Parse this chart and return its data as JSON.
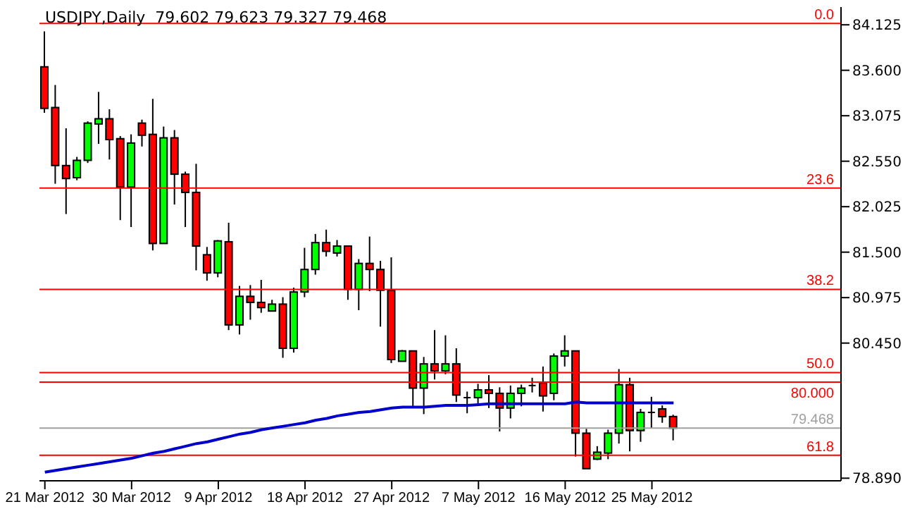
{
  "chart_data": {
    "type": "candlestick",
    "title": "USDJPY,Daily  79.602 79.623 79.327 79.468",
    "categories": [
      "21 Mar 2012",
      null,
      null,
      null,
      null,
      null,
      null,
      null,
      "30 Mar 2012",
      null,
      null,
      null,
      null,
      null,
      null,
      null,
      "9 Apr 2012",
      null,
      null,
      null,
      null,
      null,
      null,
      null,
      "18 Apr 2012",
      null,
      null,
      null,
      null,
      null,
      null,
      null,
      "27 Apr 2012",
      null,
      null,
      null,
      null,
      null,
      null,
      null,
      "7 May 2012",
      null,
      null,
      null,
      null,
      null,
      null,
      null,
      "16 May 2012",
      null,
      null,
      null,
      null,
      null,
      null,
      null,
      "25 May 2012",
      null,
      null
    ],
    "ohlc": [
      [
        83.64,
        84.05,
        83.11,
        83.16
      ],
      [
        83.17,
        83.43,
        82.29,
        82.5
      ],
      [
        82.5,
        82.93,
        81.94,
        82.35
      ],
      [
        82.36,
        82.6,
        82.33,
        82.56
      ],
      [
        82.56,
        83.01,
        82.53,
        82.99
      ],
      [
        82.98,
        83.35,
        82.75,
        83.04
      ],
      [
        83.04,
        83.15,
        82.57,
        82.8
      ],
      [
        82.81,
        82.84,
        81.87,
        82.25
      ],
      [
        82.25,
        82.86,
        81.79,
        82.76
      ],
      [
        82.99,
        83.03,
        82.72,
        82.85
      ],
      [
        82.86,
        83.27,
        81.52,
        81.6
      ],
      [
        81.6,
        82.95,
        81.6,
        82.82
      ],
      [
        82.82,
        82.91,
        82.05,
        82.4
      ],
      [
        82.4,
        82.43,
        81.79,
        82.19
      ],
      [
        82.19,
        82.52,
        81.29,
        81.57
      ],
      [
        81.47,
        81.56,
        81.17,
        81.26
      ],
      [
        81.26,
        81.64,
        81.21,
        81.63
      ],
      [
        81.62,
        81.84,
        80.6,
        80.66
      ],
      [
        80.66,
        81.11,
        80.55,
        80.99
      ],
      [
        80.99,
        81.12,
        80.72,
        80.92
      ],
      [
        80.92,
        81.18,
        80.8,
        80.86
      ],
      [
        80.82,
        80.95,
        80.82,
        80.9
      ],
      [
        80.9,
        80.98,
        80.28,
        80.39
      ],
      [
        80.39,
        81.09,
        80.34,
        81.04
      ],
      [
        81.04,
        81.55,
        80.98,
        81.3
      ],
      [
        81.3,
        81.71,
        81.24,
        81.61
      ],
      [
        81.61,
        81.76,
        81.45,
        81.51
      ],
      [
        81.49,
        81.64,
        81.45,
        81.57
      ],
      [
        81.57,
        81.57,
        80.95,
        81.07
      ],
      [
        81.07,
        81.42,
        80.83,
        81.37
      ],
      [
        81.37,
        81.68,
        81.05,
        81.3
      ],
      [
        81.3,
        81.4,
        80.64,
        81.06
      ],
      [
        81.06,
        81.44,
        80.22,
        80.26
      ],
      [
        80.24,
        80.37,
        80.24,
        80.36
      ],
      [
        80.36,
        80.36,
        79.72,
        79.93
      ],
      [
        79.93,
        80.29,
        79.63,
        80.21
      ],
      [
        80.21,
        80.6,
        80.03,
        80.13
      ],
      [
        80.13,
        80.54,
        80.09,
        80.21
      ],
      [
        80.21,
        80.39,
        79.77,
        79.85
      ],
      [
        79.82,
        79.89,
        79.64,
        79.82
      ],
      [
        79.82,
        79.98,
        79.75,
        79.91
      ],
      [
        79.91,
        80.08,
        79.7,
        79.87
      ],
      [
        79.87,
        79.94,
        79.43,
        79.7
      ],
      [
        79.7,
        79.96,
        79.58,
        79.87
      ],
      [
        79.87,
        79.97,
        79.72,
        79.93
      ],
      [
        79.96,
        80.05,
        79.88,
        79.96
      ],
      [
        79.99,
        80.18,
        79.66,
        79.84
      ],
      [
        79.87,
        80.33,
        79.79,
        80.3
      ],
      [
        80.3,
        80.54,
        80.18,
        80.36
      ],
      [
        80.36,
        80.36,
        79.14,
        79.41
      ],
      [
        79.41,
        79.46,
        79.0,
        79.0
      ],
      [
        79.11,
        79.26,
        79.1,
        79.19
      ],
      [
        79.18,
        79.45,
        79.11,
        79.41
      ],
      [
        79.41,
        80.15,
        79.29,
        79.97
      ],
      [
        79.97,
        80.05,
        79.2,
        79.44
      ],
      [
        79.44,
        79.69,
        79.31,
        79.65
      ],
      [
        79.65,
        79.83,
        79.47,
        79.65
      ],
      [
        79.69,
        79.73,
        79.53,
        79.6
      ],
      [
        79.602,
        79.623,
        79.327,
        79.468
      ]
    ],
    "colors": [
      "#ff0000",
      "#ff0000",
      "#ff0000",
      "#00ff00",
      "#00ff00",
      "#00ff00",
      "#ff0000",
      "#ff0000",
      "#00ff00",
      "#ff0000",
      "#ff0000",
      "#00ff00",
      "#ff0000",
      "#ff0000",
      "#ff0000",
      "#ff0000",
      "#00ff00",
      "#ff0000",
      "#00ff00",
      "#ff0000",
      "#ff0000",
      "#00ff00",
      "#ff0000",
      "#00ff00",
      "#00ff00",
      "#00ff00",
      "#ff0000",
      "#00ff00",
      "#ff0000",
      "#00ff00",
      "#ff0000",
      "#ff0000",
      "#ff0000",
      "#00ff00",
      "#ff0000",
      "#00ff00",
      "#ff0000",
      "#00ff00",
      "#ff0000",
      "#000000",
      "#00ff00",
      "#ff0000",
      "#ff0000",
      "#00ff00",
      "#00ff00",
      "#000000",
      "#ff0000",
      "#00ff00",
      "#00ff00",
      "#ff0000",
      "#ff0000",
      "#00ff00",
      "#00ff00",
      "#00ff00",
      "#ff0000",
      "#00ff00",
      "#000000",
      "#ff0000",
      "#ff0000"
    ],
    "series": [
      {
        "type": "line",
        "color": "#0000cc",
        "values": [
          78.96,
          78.98,
          79.0,
          79.02,
          79.04,
          79.06,
          79.08,
          79.1,
          79.12,
          79.15,
          79.18,
          79.2,
          79.23,
          79.26,
          79.29,
          79.31,
          79.34,
          79.37,
          79.4,
          79.42,
          79.45,
          79.47,
          79.49,
          79.51,
          79.53,
          79.56,
          79.58,
          79.61,
          79.63,
          79.65,
          79.66,
          79.68,
          79.7,
          79.71,
          79.71,
          79.71,
          79.72,
          79.73,
          79.73,
          79.73,
          79.74,
          79.75,
          79.75,
          79.75,
          79.75,
          79.75,
          79.75,
          79.75,
          79.75,
          79.77,
          79.76,
          79.76,
          79.76,
          79.76,
          79.76,
          79.76,
          79.76,
          79.76,
          79.76
        ]
      }
    ],
    "ylim": [
      78.86,
      84.33
    ],
    "yticks": [
      {
        "value": 84.125,
        "label": "84.125"
      },
      {
        "value": 83.6,
        "label": "83.600"
      },
      {
        "value": 83.075,
        "label": "83.075"
      },
      {
        "value": 82.55,
        "label": "82.550"
      },
      {
        "value": 82.025,
        "label": "82.025"
      },
      {
        "value": 81.5,
        "label": "81.500"
      },
      {
        "value": 80.975,
        "label": "80.975"
      },
      {
        "value": 80.45,
        "label": "80.450"
      },
      {
        "value": 78.89,
        "label": "78.890"
      }
    ],
    "ref_lines": [
      {
        "axis": "y",
        "value": 84.14,
        "color": "#ff0000"
      },
      {
        "axis": "y",
        "value": 82.24,
        "color": "#ff0000"
      },
      {
        "axis": "y",
        "value": 81.07,
        "color": "#ff0000"
      },
      {
        "axis": "y",
        "value": 80.11,
        "color": "#ff0000"
      },
      {
        "axis": "y",
        "value": 80.0,
        "label": "80.000",
        "color": "#ff0000"
      },
      {
        "axis": "y",
        "value": 79.468,
        "label": "79.468",
        "color": "#a0a0a0"
      },
      {
        "axis": "y",
        "value": 79.155,
        "color": "#ff0000"
      }
    ],
    "annotations": [
      {
        "text": "0.0",
        "y": 84.14
      },
      {
        "text": "23.6",
        "y": 82.24
      },
      {
        "text": "38.2",
        "y": 81.07
      },
      {
        "text": "50.0",
        "y": 80.11
      },
      {
        "text": "61.8",
        "y": 79.155
      }
    ]
  }
}
